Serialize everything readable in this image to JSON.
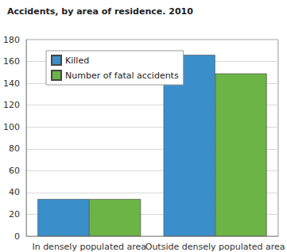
{
  "chart_data": {
    "type": "bar",
    "title": "Accidents, by area of residence. 2010",
    "categories": [
      "In densely populated area",
      "Outside densely populated area"
    ],
    "series": [
      {
        "name": "Killed",
        "color": "#3a8fcb",
        "values": [
          34,
          166
        ]
      },
      {
        "name": "Number of fatal accidents",
        "color": "#6bb445",
        "values": [
          34,
          149
        ]
      }
    ],
    "ylim": [
      0,
      180
    ],
    "yticks": [
      0,
      20,
      40,
      60,
      80,
      100,
      120,
      140,
      160,
      180
    ],
    "grid": true,
    "legend": "top-left"
  }
}
